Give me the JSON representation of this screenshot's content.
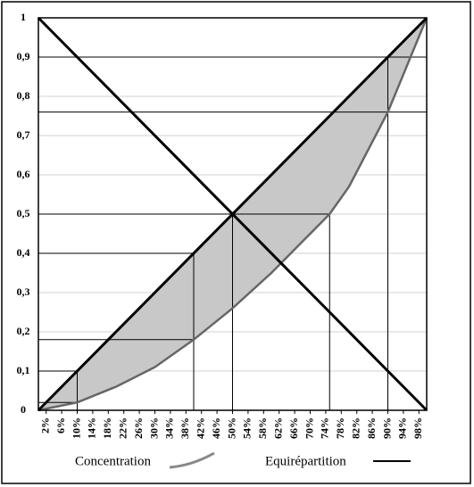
{
  "chart_data": {
    "type": "line",
    "series": [
      {
        "name": "Concentration",
        "color": "#666666",
        "x": [
          0,
          10,
          20,
          30,
          40,
          50,
          60,
          70,
          75,
          80,
          90,
          95,
          100
        ],
        "values": [
          0,
          0.02,
          0.06,
          0.11,
          0.18,
          0.26,
          0.35,
          0.45,
          0.5,
          0.57,
          0.76,
          0.88,
          1
        ]
      },
      {
        "name": "Equirépartition",
        "color": "#000000",
        "x": [
          0,
          100
        ],
        "values": [
          0,
          1
        ]
      },
      {
        "color": "#000000",
        "x": [
          0,
          100
        ],
        "values": [
          1,
          0
        ]
      }
    ],
    "guide_lines": [
      {
        "x": [
          0,
          100
        ],
        "values": [
          0.9,
          0.9
        ]
      },
      {
        "x": [
          0,
          100
        ],
        "values": [
          0.76,
          0.76
        ]
      },
      {
        "x": [
          0,
          75
        ],
        "values": [
          0.5,
          0.5
        ]
      },
      {
        "x": [
          0,
          40
        ],
        "values": [
          0.4,
          0.4
        ]
      },
      {
        "x": [
          0,
          40
        ],
        "values": [
          0.18,
          0.18
        ]
      },
      {
        "x": [
          0,
          10
        ],
        "values": [
          0.1,
          0.1
        ]
      },
      {
        "x": [
          0,
          10
        ],
        "values": [
          0.02,
          0.02
        ]
      },
      {
        "x": [
          10,
          10
        ],
        "values": [
          0,
          0.1
        ]
      },
      {
        "x": [
          40,
          40
        ],
        "values": [
          0,
          0.4
        ]
      },
      {
        "x": [
          50,
          50
        ],
        "values": [
          0,
          0.5
        ]
      },
      {
        "x": [
          75,
          75
        ],
        "values": [
          0,
          0.5
        ]
      },
      {
        "x": [
          90,
          90
        ],
        "values": [
          0,
          0.9
        ]
      }
    ],
    "fill_color": "#c8c8c8",
    "xlim": [
      0,
      100
    ],
    "ylim": [
      0,
      1
    ],
    "xticks": [
      {
        "value": 2,
        "label": "2%"
      },
      {
        "value": 6,
        "label": "6%"
      },
      {
        "value": 10,
        "label": "10%"
      },
      {
        "value": 14,
        "label": "14%"
      },
      {
        "value": 18,
        "label": "18%"
      },
      {
        "value": 22,
        "label": "22%"
      },
      {
        "value": 26,
        "label": "26%"
      },
      {
        "value": 30,
        "label": "30%"
      },
      {
        "value": 34,
        "label": "34%"
      },
      {
        "value": 38,
        "label": "38%"
      },
      {
        "value": 42,
        "label": "42%"
      },
      {
        "value": 46,
        "label": "46%"
      },
      {
        "value": 50,
        "label": "50%"
      },
      {
        "value": 54,
        "label": "54%"
      },
      {
        "value": 58,
        "label": "58%"
      },
      {
        "value": 62,
        "label": "62%"
      },
      {
        "value": 66,
        "label": "66%"
      },
      {
        "value": 70,
        "label": "70%"
      },
      {
        "value": 74,
        "label": "74%"
      },
      {
        "value": 78,
        "label": "78%"
      },
      {
        "value": 82,
        "label": "82%"
      },
      {
        "value": 86,
        "label": "86%"
      },
      {
        "value": 90,
        "label": "90%"
      },
      {
        "value": 94,
        "label": "94%"
      },
      {
        "value": 98,
        "label": "98%"
      }
    ],
    "yticks": [
      0,
      {
        "value": 0.1,
        "label": "0,1"
      },
      {
        "value": 0.2,
        "label": "0,2"
      },
      {
        "value": 0.3,
        "label": "0,3"
      },
      {
        "value": 0.4,
        "label": "0,4"
      },
      {
        "value": 0.5,
        "label": "0,5"
      },
      {
        "value": 0.6,
        "label": "0,6"
      },
      {
        "value": 0.7,
        "label": "0,7"
      },
      {
        "value": 0.8,
        "label": "0,8"
      },
      {
        "value": 0.9,
        "label": "0,9"
      },
      1
    ],
    "grid": true
  }
}
